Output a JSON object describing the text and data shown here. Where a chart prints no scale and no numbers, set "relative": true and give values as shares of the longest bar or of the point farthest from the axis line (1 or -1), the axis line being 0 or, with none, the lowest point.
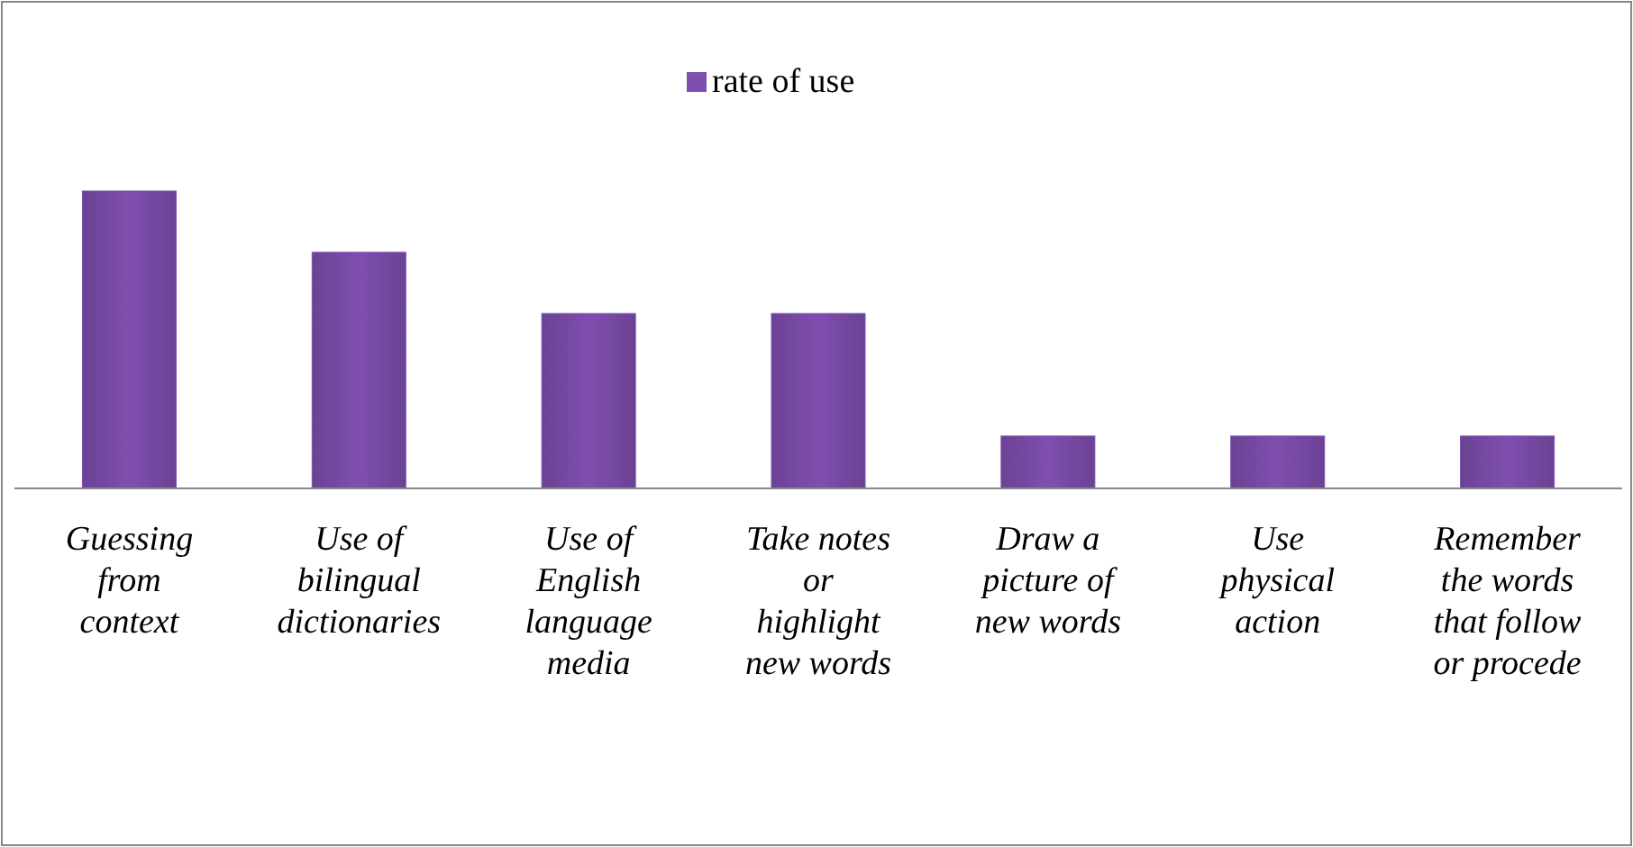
{
  "chart_data": {
    "type": "bar",
    "relative": true,
    "legend": "top",
    "categories": [
      "Guessing from context",
      "Use of bilingual dictionaries",
      "Use of English language media",
      "Take notes or highlight new words",
      "Draw a picture of new words",
      "Use physical action",
      "Remember the words that follow or procede"
    ],
    "series": [
      {
        "name": "rate of use",
        "color": "#7f4fb0",
        "values": [
          1,
          0.794,
          0.588,
          0.588,
          0.176,
          0.176,
          0.176
        ]
      }
    ]
  }
}
